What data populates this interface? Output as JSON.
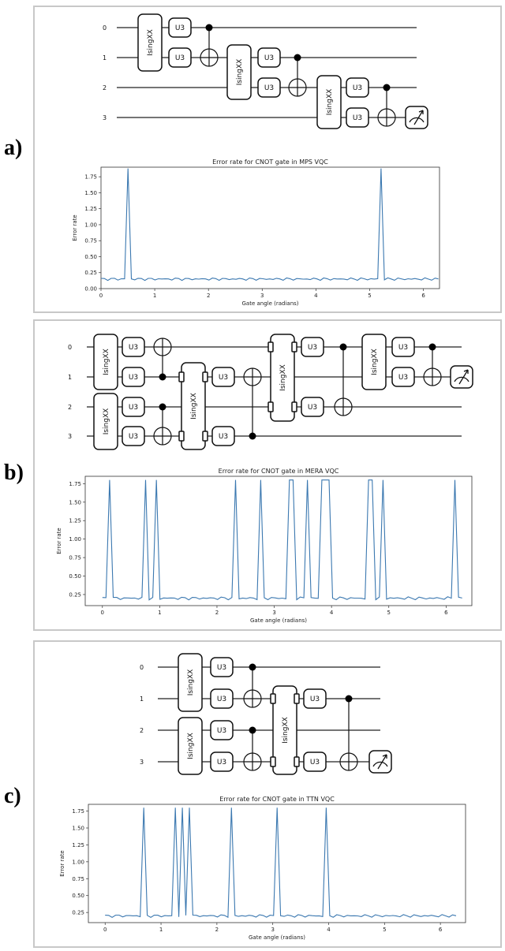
{
  "panels": [
    {
      "label": "a)",
      "circuit": {
        "qubit_labels": [
          "0",
          "1",
          "2",
          "3"
        ],
        "two_qubit_gate_label": "IsingXX",
        "single_gate_label": "U3"
      },
      "chart_data": {
        "type": "line",
        "title": "Error rate for CNOT gate in MPS VQC",
        "xlabel": "Gate angle (radians)",
        "ylabel": "Error rate",
        "xlim": [
          0,
          6.3
        ],
        "ylim": [
          0.0,
          1.9
        ],
        "xticks": [
          0,
          1,
          2,
          3,
          4,
          5,
          6
        ],
        "yticks": [
          0.0,
          0.25,
          0.5,
          0.75,
          1.0,
          1.25,
          1.5,
          1.75
        ],
        "series": [
          {
            "color": "#3b78b0",
            "spikes_at": [
              0.5,
              5.2
            ],
            "spike_value": 1.88,
            "baseline": 0.15
          }
        ]
      }
    },
    {
      "label": "b)",
      "circuit": {
        "qubit_labels": [
          "0",
          "1",
          "2",
          "3"
        ],
        "two_qubit_gate_label": "IsingXX",
        "single_gate_label": "U3"
      },
      "chart_data": {
        "type": "line",
        "title": "Error rate for CNOT gate in MERA VQC",
        "xlabel": "Gate angle (radians)",
        "ylabel": "Error rate",
        "xlim": [
          -0.3,
          6.45
        ],
        "ylim": [
          0.1,
          1.85
        ],
        "xticks": [
          0,
          1,
          2,
          3,
          4,
          5,
          6
        ],
        "yticks": [
          0.25,
          0.5,
          0.75,
          1.0,
          1.25,
          1.5,
          1.75
        ],
        "series": [
          {
            "color": "#3b78b0",
            "spikes_at": [
              0.13,
              0.76,
              0.95,
              2.3,
              2.75,
              3.27,
              3.33,
              3.6,
              3.86,
              3.98,
              4.68,
              4.88,
              6.15
            ],
            "spike_value": 1.8,
            "baseline": 0.2
          }
        ]
      }
    },
    {
      "label": "c)",
      "circuit": {
        "qubit_labels": [
          "0",
          "1",
          "2",
          "3"
        ],
        "two_qubit_gate_label": "IsingXX",
        "single_gate_label": "U3"
      },
      "chart_data": {
        "type": "line",
        "title": "Error rate for CNOT gate in TTN VQC",
        "xlabel": "Gate angle (radians)",
        "ylabel": "Error rate",
        "xlim": [
          -0.3,
          6.45
        ],
        "ylim": [
          0.1,
          1.85
        ],
        "xticks": [
          0,
          1,
          2,
          3,
          4,
          5,
          6
        ],
        "yticks": [
          0.25,
          0.5,
          0.75,
          1.0,
          1.25,
          1.5,
          1.75
        ],
        "series": [
          {
            "color": "#3b78b0",
            "spikes_at": [
              0.7,
              1.27,
              1.38,
              1.51,
              2.25,
              3.1,
              3.98
            ],
            "spike_value": 1.8,
            "baseline": 0.2
          }
        ]
      }
    }
  ]
}
